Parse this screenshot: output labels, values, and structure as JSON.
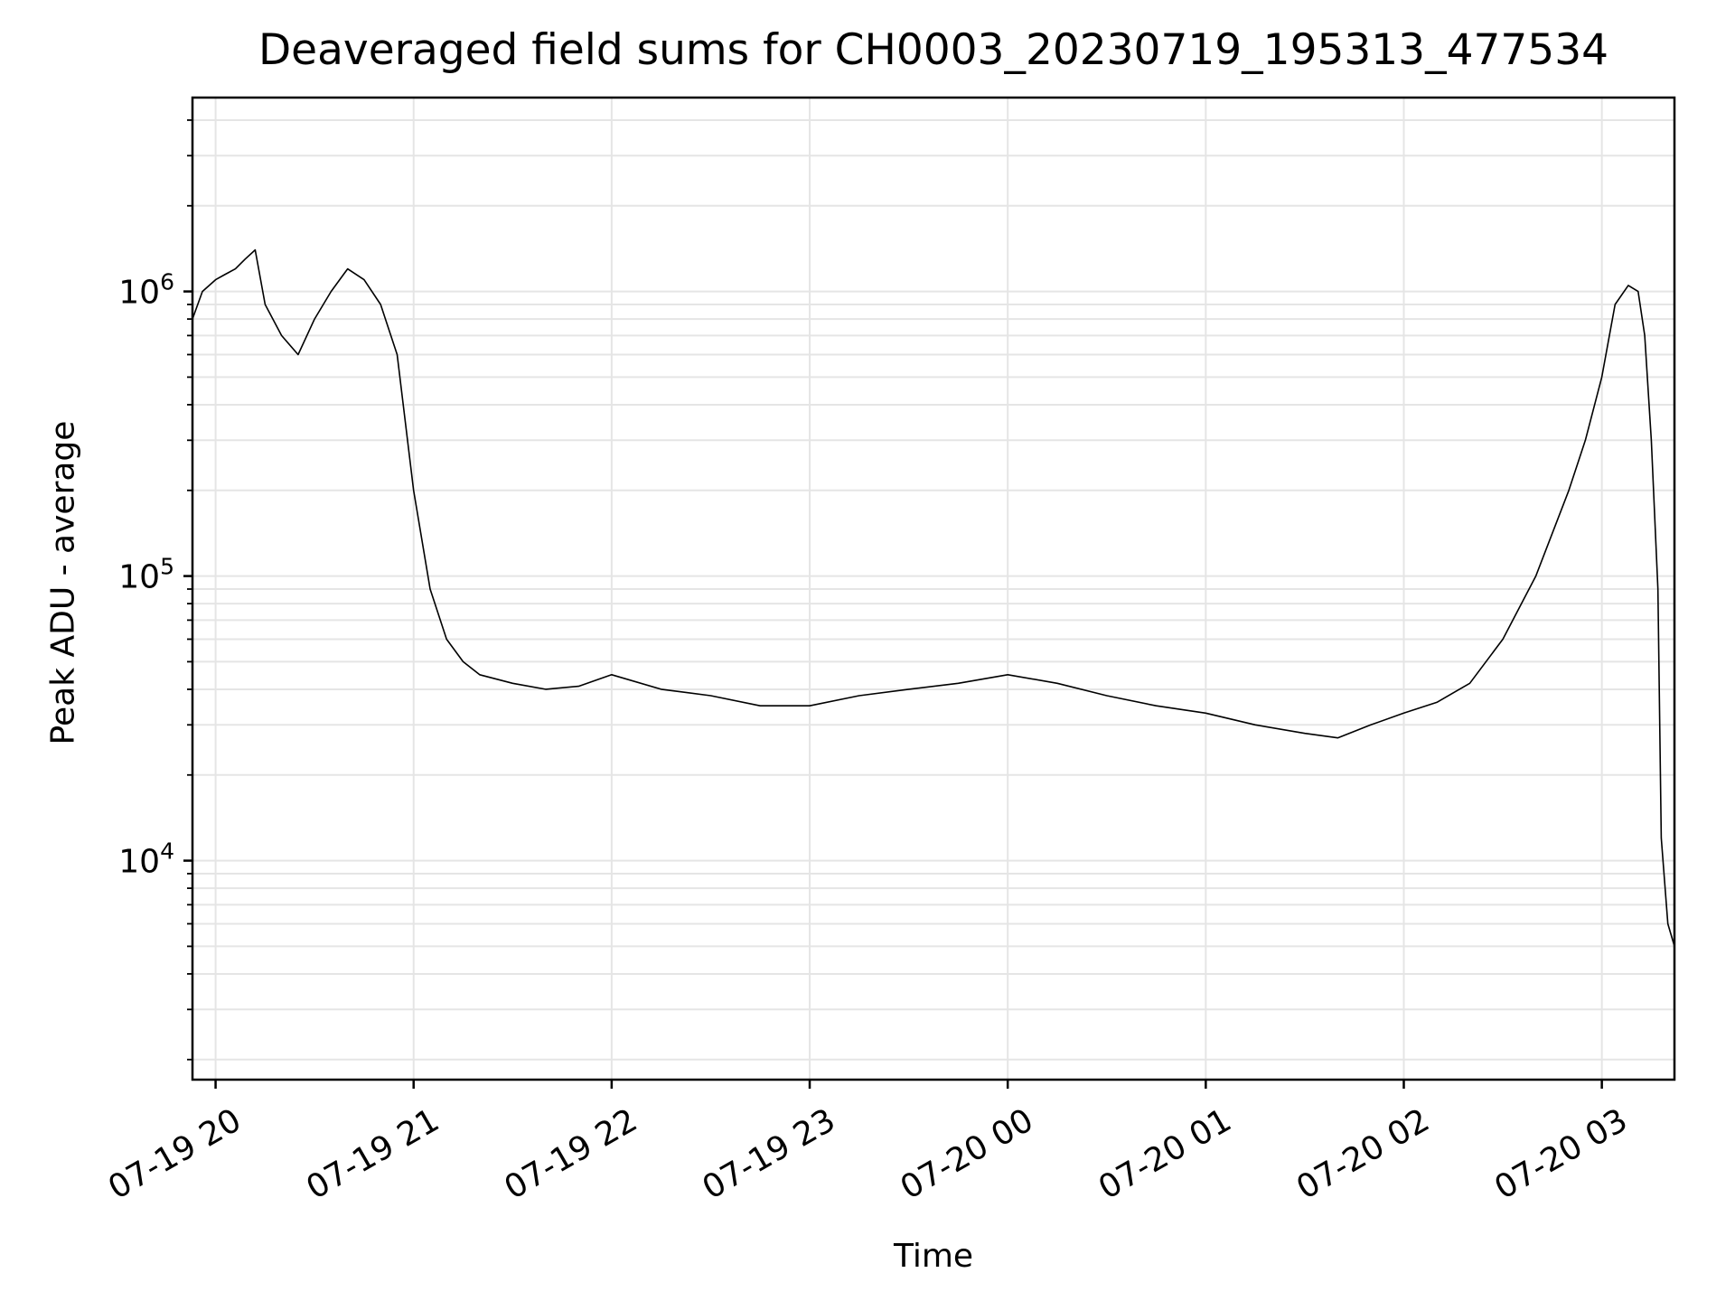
{
  "chart_data": {
    "type": "line",
    "title": "Deaveraged field sums for CH0003_20230719_195313_477534",
    "xlabel": "Time",
    "ylabel": "Peak ADU - average",
    "y_scale": "log",
    "grid": true,
    "line_color": "#000000",
    "grid_color": "#e5e5e5",
    "x_range": [
      "2023-07-19 19:53",
      "2023-07-20 03:22"
    ],
    "ylim": [
      1700,
      4800000
    ],
    "x_ticks": [
      "07-19 20",
      "07-19 21",
      "07-19 22",
      "07-19 23",
      "07-20 00",
      "07-20 01",
      "07-20 02",
      "07-20 03"
    ],
    "y_ticks": [
      {
        "base": "10",
        "exp": "4",
        "value": 10000
      },
      {
        "base": "10",
        "exp": "5",
        "value": 100000
      },
      {
        "base": "10",
        "exp": "6",
        "value": 1000000
      }
    ],
    "series": [
      {
        "x": [
          "2023-07-19 19:53",
          "2023-07-19 19:56",
          "2023-07-19 20:00",
          "2023-07-19 20:03",
          "2023-07-19 20:06",
          "2023-07-19 20:09",
          "2023-07-19 20:12",
          "2023-07-19 20:15",
          "2023-07-19 20:20",
          "2023-07-19 20:25",
          "2023-07-19 20:30",
          "2023-07-19 20:35",
          "2023-07-19 20:40",
          "2023-07-19 20:45",
          "2023-07-19 20:50",
          "2023-07-19 20:55",
          "2023-07-19 21:00",
          "2023-07-19 21:05",
          "2023-07-19 21:10",
          "2023-07-19 21:15",
          "2023-07-19 21:20",
          "2023-07-19 21:30",
          "2023-07-19 21:40",
          "2023-07-19 21:50",
          "2023-07-19 22:00",
          "2023-07-19 22:15",
          "2023-07-19 22:30",
          "2023-07-19 22:45",
          "2023-07-19 23:00",
          "2023-07-19 23:15",
          "2023-07-19 23:30",
          "2023-07-19 23:45",
          "2023-07-20 00:00",
          "2023-07-20 00:15",
          "2023-07-20 00:30",
          "2023-07-20 00:45",
          "2023-07-20 01:00",
          "2023-07-20 01:15",
          "2023-07-20 01:30",
          "2023-07-20 01:40",
          "2023-07-20 01:50",
          "2023-07-20 02:00",
          "2023-07-20 02:10",
          "2023-07-20 02:20",
          "2023-07-20 02:30",
          "2023-07-20 02:40",
          "2023-07-20 02:50",
          "2023-07-20 02:55",
          "2023-07-20 03:00",
          "2023-07-20 03:04",
          "2023-07-20 03:08",
          "2023-07-20 03:11",
          "2023-07-20 03:13",
          "2023-07-20 03:15",
          "2023-07-20 03:17",
          "2023-07-20 03:18",
          "2023-07-20 03:20",
          "2023-07-20 03:22"
        ],
        "y": [
          800000,
          1000000,
          1100000,
          1150000,
          1200000,
          1300000,
          1400000,
          900000,
          700000,
          600000,
          800000,
          1000000,
          1200000,
          1100000,
          900000,
          600000,
          200000,
          90000,
          60000,
          50000,
          45000,
          42000,
          40000,
          41000,
          45000,
          40000,
          38000,
          35000,
          35000,
          38000,
          40000,
          42000,
          45000,
          42000,
          38000,
          35000,
          33000,
          30000,
          28000,
          27000,
          30000,
          33000,
          36000,
          42000,
          60000,
          100000,
          200000,
          300000,
          500000,
          900000,
          1050000,
          1000000,
          700000,
          300000,
          90000,
          12000,
          6000,
          5000
        ]
      }
    ]
  }
}
